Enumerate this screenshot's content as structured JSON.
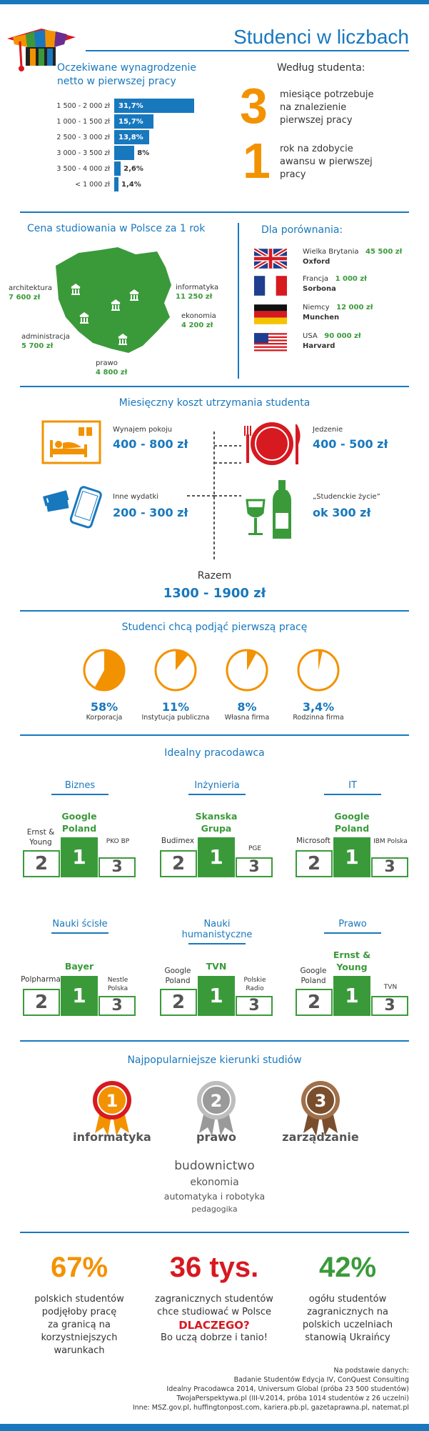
{
  "header": {
    "title": "Studenci w liczbach"
  },
  "salary": {
    "title_line1": "Oczekiwane wynagrodzenie",
    "title_line2": "netto w pierwszej pracy",
    "rows": [
      {
        "label": "1 500 - 2 000 zł",
        "value": "31,7%",
        "pct": 31.7
      },
      {
        "label": "1 000 - 1 500 zł",
        "value": "15,7%",
        "pct": 15.7
      },
      {
        "label": "2 500 - 3 000 zł",
        "value": "13,8%",
        "pct": 13.8
      },
      {
        "label": "3 000 - 3 500 zł",
        "value": "8%",
        "pct": 8
      },
      {
        "label": "3 500 - 4 000 zł",
        "value": "2,6%",
        "pct": 2.6
      },
      {
        "label": "< 1 000 zł",
        "value": "1,4%",
        "pct": 1.4
      }
    ]
  },
  "student": {
    "title": "Według studenta:",
    "n1": "3",
    "t1a": "miesiące potrzebuje",
    "t1b": "na znalezienie",
    "t1c": "pierwszej pracy",
    "n2": "1",
    "t2a": "rok na zdobycie",
    "t2b": "awansu w pierwszej",
    "t2c": "pracy"
  },
  "cost_pl": {
    "title": "Cena studiowania w Polsce za 1 rok",
    "items": [
      {
        "name": "architektura",
        "price": "7 600 zł"
      },
      {
        "name": "informatyka",
        "price": "11 250 zł"
      },
      {
        "name": "ekonomia",
        "price": "4 200 zł"
      },
      {
        "name": "administracja",
        "price": "5 700 zł"
      },
      {
        "name": "prawo",
        "price": "4 800 zł"
      }
    ]
  },
  "compare": {
    "title": "Dla porównania:",
    "items": [
      {
        "country": "Wielka Brytania",
        "price": "45 500 zł",
        "uni": "Oxford"
      },
      {
        "country": "Francja",
        "price": "1 000 zł",
        "uni": "Sorbona"
      },
      {
        "country": "Niemcy",
        "price": "12 000 zł",
        "uni": "Munchen"
      },
      {
        "country": "USA",
        "price": "90 000 zł",
        "uni": "Harvard"
      }
    ]
  },
  "monthly": {
    "title": "Miesięczny koszt utrzymania studenta",
    "rent_label": "Wynajem pokoju",
    "rent_value": "400 - 800 zł",
    "food_label": "Jedzenie",
    "food_value": "400 - 500 zł",
    "other_label": "Inne wydatki",
    "other_value": "200 - 300 zł",
    "life_label": "„Studenckie życie”",
    "life_value": "ok 300 zł",
    "total_label": "Razem",
    "total_value": "1300 - 1900 zł"
  },
  "first_job": {
    "title": "Studenci chcą podjąć pierwszą pracę",
    "items": [
      {
        "pct": "58%",
        "value": 58,
        "name": "Korporacja",
        "fill": "#f39200"
      },
      {
        "pct": "11%",
        "value": 11,
        "name": "Instytucja publiczna",
        "fill": "#f39200"
      },
      {
        "pct": "8%",
        "value": 8,
        "name": "Własna firma",
        "fill": "#f39200"
      },
      {
        "pct": "3,4%",
        "value": 3.4,
        "name": "Rodzinna firma",
        "fill": "#f39200"
      }
    ]
  },
  "employer": {
    "title": "Idealny pracodawca",
    "cats": [
      {
        "name": "Biznes",
        "first": "Google Poland",
        "second": "Ernst & Young",
        "third": "PKO BP"
      },
      {
        "name": "Inżynieria",
        "first": "Skanska Grupa",
        "second": "Budimex",
        "third": "PGE"
      },
      {
        "name": "IT",
        "first": "Google Poland",
        "second": "Microsoft",
        "third": "IBM Polska"
      },
      {
        "name": "Nauki ścisłe",
        "first": "Bayer",
        "second": "Polpharma",
        "third": "Nestle Polska"
      },
      {
        "name": "Nauki humanistyczne",
        "first": "TVN",
        "second": "Google Poland",
        "third": "Polskie Radio"
      },
      {
        "name": "Prawo",
        "first": "Ernst & Young",
        "second": "Google Poland",
        "third": "TVN"
      }
    ],
    "r1": "1",
    "r2": "2",
    "r3": "3"
  },
  "fields": {
    "title": "Najpopularniejsze kierunki studiów",
    "top": [
      {
        "rank": "1",
        "name": "informatyka",
        "color": "#f39200",
        "ring": "#d71920"
      },
      {
        "rank": "2",
        "name": "prawo",
        "color": "#9a9a9a",
        "ring": "#bdbdbd"
      },
      {
        "rank": "3",
        "name": "zarządzanie",
        "color": "#7a4e2d",
        "ring": "#a0704a"
      }
    ],
    "rest": [
      "budownictwo",
      "ekonomia",
      "automatyka i robotyka",
      "pedagogika"
    ]
  },
  "stats": [
    {
      "num": "67%",
      "l1": "polskich studentów",
      "l2": "podjęłoby pracę",
      "l3": "za granicą na",
      "l4": "korzystniejszych",
      "l5": "warunkach",
      "color": "#f39200"
    },
    {
      "num": "36 tys.",
      "l1": "zagranicznych studentów",
      "l2": "chce studiować w Polsce",
      "l3": "DLACZEGO?",
      "l4": "Bo uczą dobrze i tanio!",
      "color": "#d71920"
    },
    {
      "num": "42%",
      "l1": "ogółu studentów",
      "l2": "zagranicznych na",
      "l3": "polskich uczelniach",
      "l4": "stanowią Ukraińcy",
      "color": "#3a9a3a"
    }
  ],
  "sources": {
    "l1": "Na podstawie danych:",
    "l2": "Badanie Studentów Edycja IV, ConQuest Consulting",
    "l3": "Idealny Pracodawca 2014, Universum Global (próba 23 500 studentów)",
    "l4": "TwojaPerspektywa.pl (III-V.2014, próba 1014 studentów z 26 uczelni)",
    "l5": "Inne: MSZ.gov.pl, huffingtonpost.com,  kariera.pb.pl, gazetaprawna.pl, natemat.pl"
  }
}
